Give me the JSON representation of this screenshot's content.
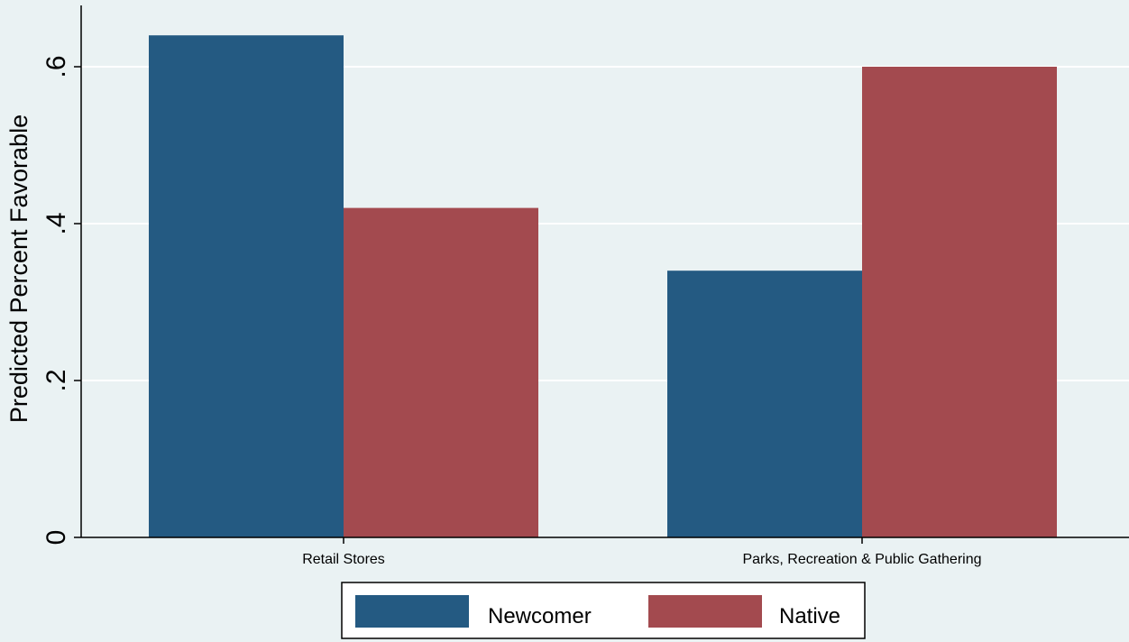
{
  "chart_data": {
    "type": "bar",
    "ylabel": "Predicted Percent Favorable",
    "categories": [
      "Retail Stores",
      "Parks, Recreation & Public Gathering"
    ],
    "series": [
      {
        "name": "Newcomer",
        "color": "#245a82",
        "values": [
          0.64,
          0.34
        ]
      },
      {
        "name": "Native",
        "color": "#a34a4f",
        "values": [
          0.42,
          0.6
        ]
      }
    ],
    "ylim": [
      0,
      0.68
    ],
    "yticks": [
      0,
      0.2,
      0.4,
      0.6
    ],
    "ytick_labels": [
      "0",
      ".2",
      ".4",
      ".6"
    ],
    "grid": true,
    "legend_position": "bottom"
  }
}
